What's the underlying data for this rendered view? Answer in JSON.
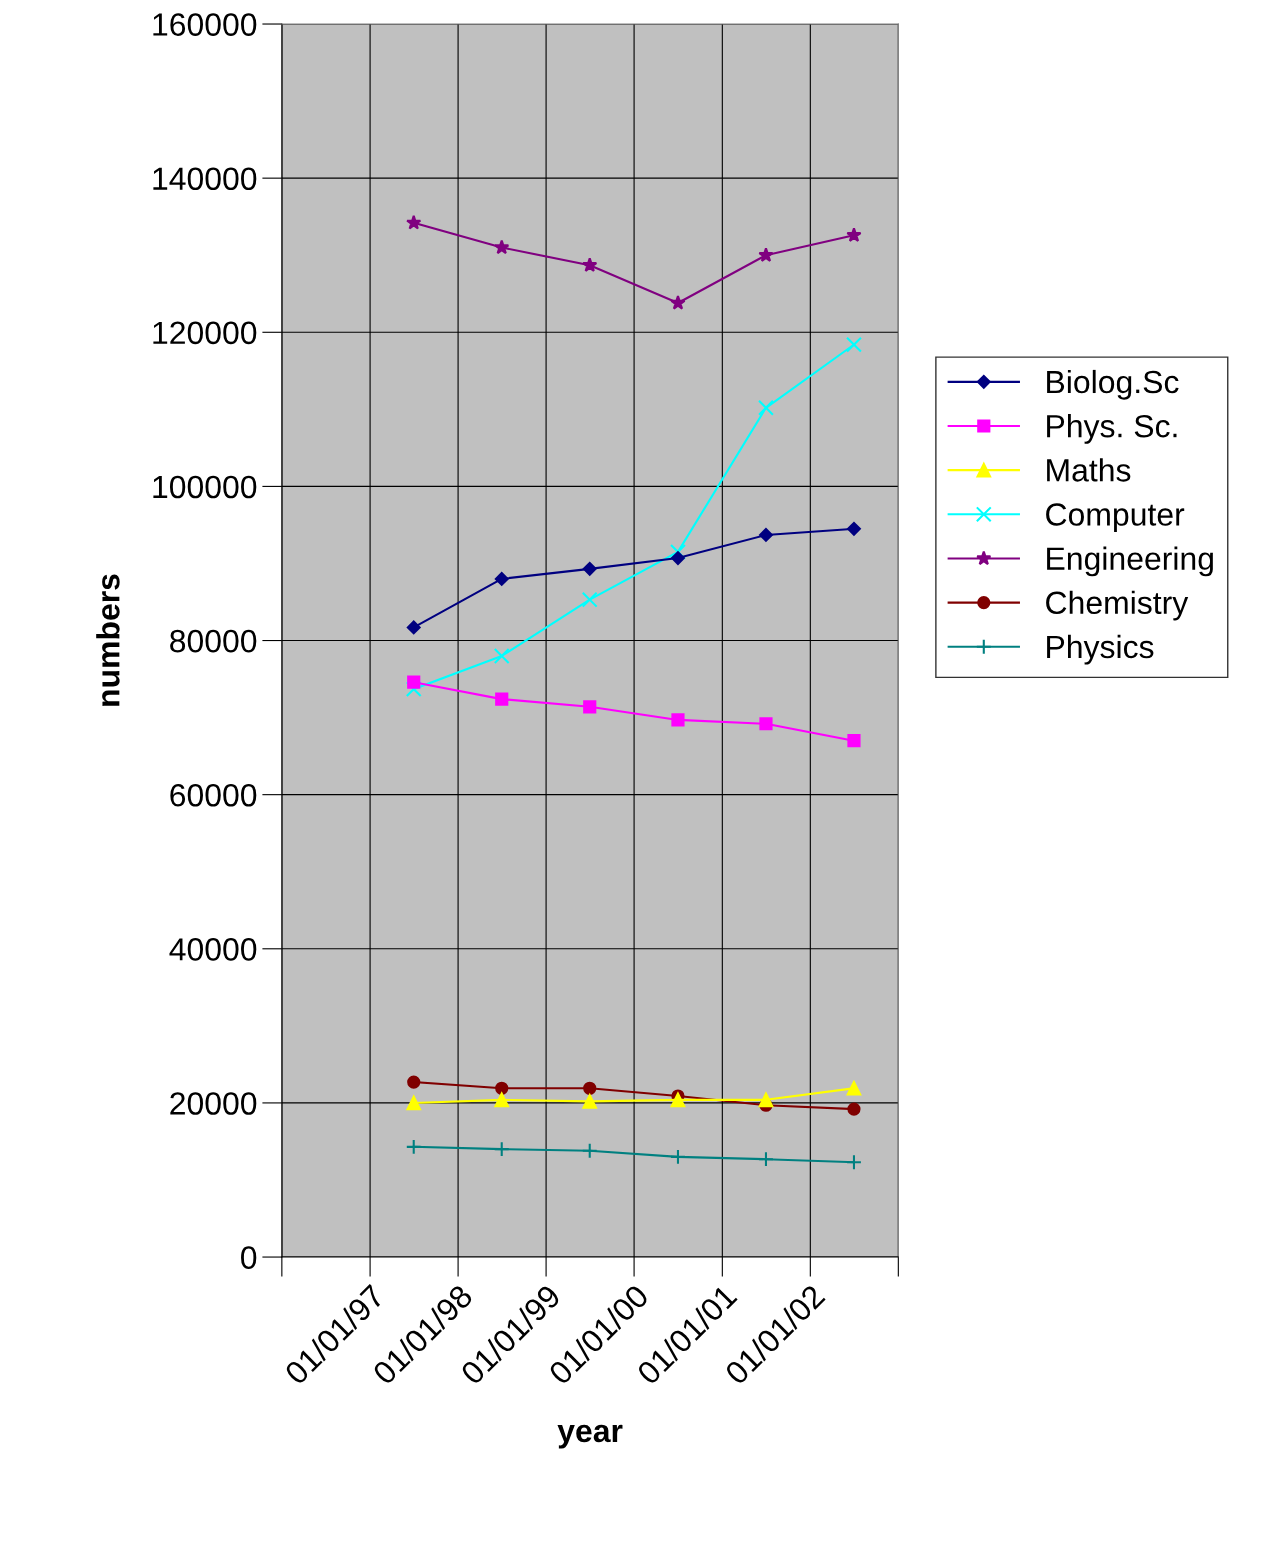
{
  "chart_data": {
    "type": "line",
    "xlabel": "year",
    "ylabel": "numbers",
    "x": [
      "1997-07-01",
      "1998-07-01",
      "1999-07-01",
      "2000-07-01",
      "2001-07-01",
      "2002-07-01"
    ],
    "xlim": [
      "1996-01-01",
      "2003-01-01"
    ],
    "xticks": [
      {
        "value": "1996-01-01",
        "label": null
      },
      {
        "value": "1997-01-01",
        "label": "01/01/97"
      },
      {
        "value": "1998-01-01",
        "label": "01/01/98"
      },
      {
        "value": "1999-01-01",
        "label": "01/01/99"
      },
      {
        "value": "2000-01-01",
        "label": "01/01/00"
      },
      {
        "value": "2001-01-01",
        "label": "01/01/01"
      },
      {
        "value": "2002-01-01",
        "label": "01/01/02"
      },
      {
        "value": "2003-01-01",
        "label": null
      }
    ],
    "ylim": [
      0,
      160000
    ],
    "yticks": [
      0,
      20000,
      40000,
      60000,
      80000,
      100000,
      120000,
      140000,
      160000
    ],
    "grid": true,
    "legend": "right",
    "series": [
      {
        "name": "Biolog.Sc",
        "color": "#000080",
        "marker": "diamond",
        "values": [
          81700,
          88000,
          89300,
          90700,
          93700,
          94500
        ]
      },
      {
        "name": "Phys. Sc.",
        "color": "#ff00ff",
        "marker": "square",
        "values": [
          74600,
          72400,
          71400,
          69700,
          69200,
          67000
        ]
      },
      {
        "name": "Maths",
        "color": "#ffff00",
        "marker": "triangle",
        "values": [
          20000,
          20400,
          20200,
          20400,
          20400,
          21900
        ]
      },
      {
        "name": "Computer",
        "color": "#00ffff",
        "marker": "cross",
        "values": [
          73700,
          78000,
          85300,
          91500,
          110200,
          118400
        ]
      },
      {
        "name": "Engineering",
        "color": "#800080",
        "marker": "star",
        "values": [
          134200,
          131000,
          128700,
          123800,
          130000,
          132600
        ]
      },
      {
        "name": "Chemistry",
        "color": "#800000",
        "marker": "circle",
        "values": [
          22700,
          21900,
          21900,
          20900,
          19700,
          19200
        ]
      },
      {
        "name": "Physics",
        "color": "#008080",
        "marker": "plus",
        "values": [
          14300,
          14000,
          13800,
          13000,
          12700,
          12300
        ]
      }
    ]
  }
}
